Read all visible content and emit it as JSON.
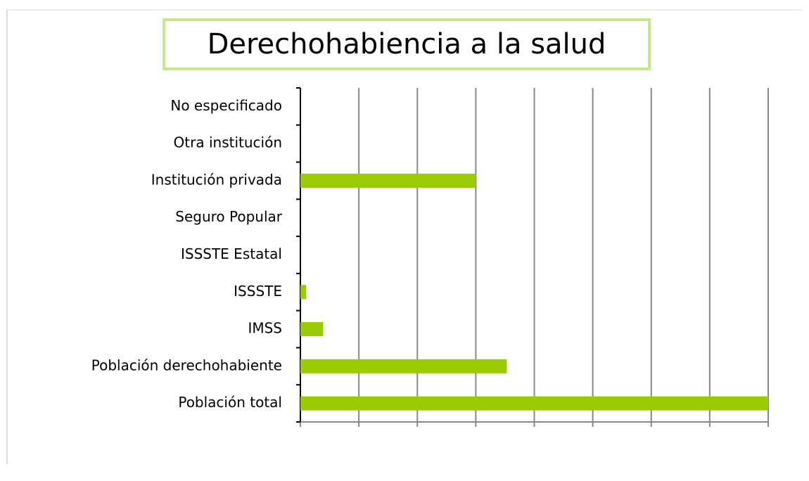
{
  "chart_data": {
    "type": "bar",
    "orientation": "horizontal",
    "title": "Derechohabiencia a la salud",
    "categories": [
      "No especificado",
      "Otra institución",
      "Institución privada",
      "Seguro Popular",
      "ISSSTE Estatal",
      "ISSSTE",
      "IMSS",
      "Población derechohabiente",
      "Población total"
    ],
    "values": [
      0,
      0,
      3.0,
      0,
      0,
      0.1,
      0.39,
      3.53,
      8
    ],
    "color": "#99cc00",
    "xlim": [
      0,
      8
    ],
    "xticks": [
      0,
      1,
      2,
      3,
      4,
      5,
      6,
      7,
      8
    ],
    "grid": true
  }
}
